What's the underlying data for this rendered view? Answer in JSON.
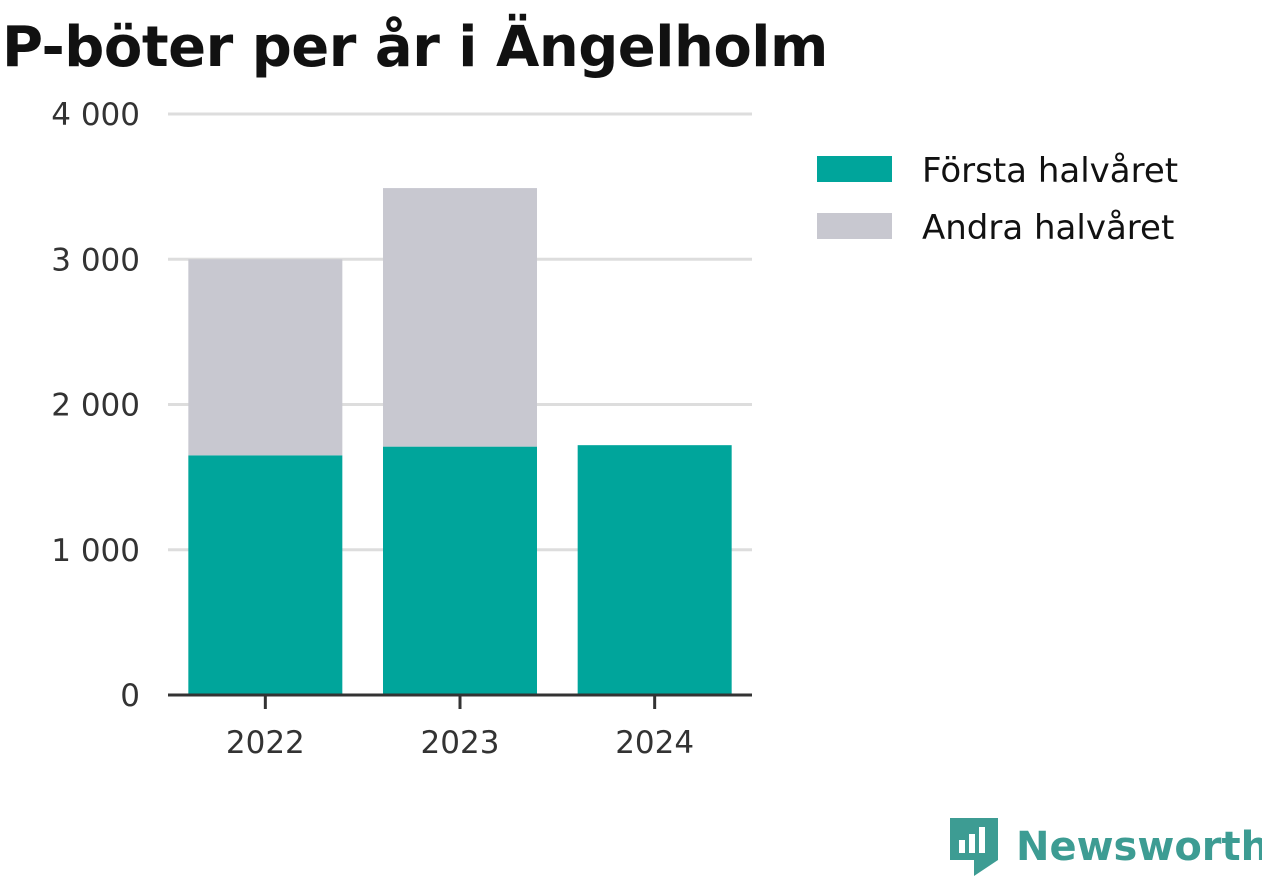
{
  "chart_data": {
    "type": "bar",
    "stacked": true,
    "title": "P-böter per år i Ängelholm",
    "xlabel": "",
    "ylabel": "",
    "categories": [
      "2022",
      "2023",
      "2024"
    ],
    "series": [
      {
        "name": "Första halvåret",
        "values": [
          1650,
          1710,
          1720
        ],
        "color": "#00a59b"
      },
      {
        "name": "Andra halvåret",
        "values": [
          1350,
          1780,
          0
        ],
        "color": "#c8c8d0"
      }
    ],
    "ylim": [
      0,
      4000
    ],
    "yticks": [
      0,
      1000,
      2000,
      3000,
      4000
    ],
    "ytick_labels": [
      "0",
      "1 000",
      "2 000",
      "3 000",
      "4 000"
    ],
    "grid": true,
    "legend": "top-right"
  },
  "branding": {
    "name": "Newsworthy",
    "icon": "newsworthy-logo-icon",
    "color": "#3d9c93"
  }
}
